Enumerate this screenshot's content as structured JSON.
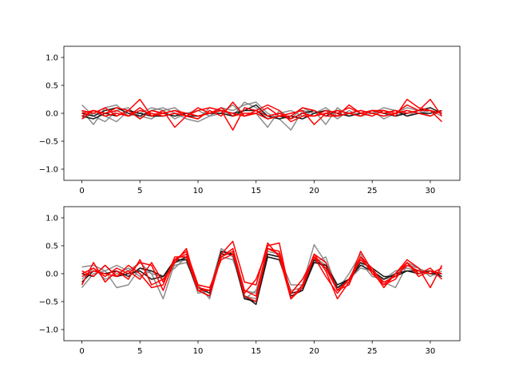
{
  "colors": {
    "gray": "#7f7f7f",
    "black": "#1a1a1a",
    "red": "#ff0000"
  },
  "chart_data": [
    {
      "type": "line",
      "title": "",
      "xlabel": "",
      "ylabel": "",
      "xlim": [
        -1.55,
        32.55
      ],
      "ylim": [
        -1.2,
        1.2
      ],
      "grid": false,
      "legend": "none",
      "xticks": [
        0,
        5,
        10,
        15,
        20,
        25,
        30
      ],
      "yticks": [
        -1.0,
        -0.5,
        0.0,
        0.5,
        1.0
      ],
      "xtick_labels": [
        "0",
        "5",
        "10",
        "15",
        "20",
        "25",
        "30"
      ],
      "ytick_labels": [
        "−1.0",
        "−0.5",
        "0.0",
        "0.5",
        "1.0"
      ],
      "x": [
        0,
        1,
        2,
        3,
        4,
        5,
        6,
        7,
        8,
        9,
        10,
        11,
        12,
        13,
        14,
        15,
        16,
        17,
        18,
        19,
        20,
        21,
        22,
        23,
        24,
        25,
        26,
        27,
        28,
        29,
        30,
        31
      ],
      "series": [
        {
          "color": "gray",
          "values": [
            0.15,
            -0.05,
            -0.15,
            0.05,
            0.1,
            -0.1,
            0.05,
            0.1,
            0.0,
            -0.1,
            -0.15,
            -0.05,
            0.1,
            0.05,
            0.15,
            0.2,
            0.0,
            -0.1,
            -0.3,
            0.05,
            0.0,
            0.1,
            -0.05,
            0.0,
            0.05,
            0.0,
            0.05,
            -0.05,
            0.05,
            0.0,
            0.05,
            -0.05
          ]
        },
        {
          "color": "gray",
          "values": [
            0.05,
            -0.2,
            0.1,
            0.15,
            -0.05,
            0.0,
            0.1,
            0.05,
            -0.1,
            0.0,
            0.05,
            -0.05,
            0.0,
            0.15,
            -0.05,
            0.0,
            -0.25,
            0.05,
            -0.1,
            0.1,
            0.0,
            0.05,
            -0.1,
            0.05,
            -0.05,
            0.0,
            0.1,
            0.05,
            -0.05,
            0.05,
            0.1,
            0.0
          ]
        },
        {
          "color": "gray",
          "values": [
            -0.1,
            0.0,
            -0.05,
            -0.15,
            0.05,
            -0.05,
            -0.1,
            0.05,
            0.1,
            -0.05,
            -0.1,
            0.1,
            0.05,
            -0.05,
            0.2,
            0.1,
            -0.05,
            0.0,
            0.05,
            -0.05,
            0.05,
            -0.2,
            0.1,
            -0.05,
            0.0,
            0.05,
            -0.1,
            0.0,
            0.1,
            0.05,
            -0.05,
            0.05
          ]
        },
        {
          "color": "black",
          "values": [
            0.0,
            -0.05,
            0.05,
            0.1,
            0.0,
            -0.05,
            0.05,
            0.0,
            -0.05,
            0.0,
            -0.05,
            0.0,
            0.05,
            0.0,
            0.05,
            0.15,
            -0.05,
            -0.1,
            -0.05,
            -0.1,
            0.0,
            0.05,
            0.0,
            -0.05,
            0.0,
            0.05,
            0.0,
            -0.05,
            0.0,
            0.05,
            0.1,
            0.0
          ]
        },
        {
          "color": "black",
          "values": [
            -0.05,
            -0.1,
            0.0,
            -0.05,
            0.05,
            0.0,
            -0.05,
            -0.05,
            0.0,
            -0.05,
            -0.05,
            0.0,
            0.0,
            -0.05,
            0.05,
            0.05,
            -0.1,
            -0.05,
            -0.1,
            0.0,
            0.05,
            -0.05,
            0.05,
            0.0,
            -0.05,
            0.05,
            0.0,
            0.05,
            -0.05,
            0.0,
            0.0,
            0.05
          ]
        },
        {
          "color": "red",
          "values": [
            -0.05,
            0.05,
            0.0,
            0.1,
            0.05,
            0.25,
            -0.05,
            0.05,
            -0.25,
            -0.05,
            0.1,
            0.0,
            0.05,
            -0.3,
            0.1,
            0.05,
            0.15,
            0.05,
            -0.15,
            -0.05,
            -0.05,
            0.05,
            0.0,
            0.1,
            0.0,
            0.05,
            0.05,
            -0.05,
            0.25,
            0.1,
            0.05,
            0.0
          ]
        },
        {
          "color": "red",
          "values": [
            0.05,
            0.0,
            0.1,
            -0.05,
            0.05,
            -0.1,
            0.05,
            0.0,
            0.05,
            -0.05,
            -0.1,
            0.05,
            -0.05,
            0.2,
            -0.05,
            0.0,
            0.1,
            -0.05,
            -0.05,
            0.1,
            0.05,
            -0.05,
            -0.05,
            0.15,
            0.0,
            -0.05,
            0.05,
            0.0,
            0.15,
            0.05,
            0.25,
            -0.05
          ]
        },
        {
          "color": "red",
          "values": [
            0.0,
            0.05,
            -0.05,
            0.0,
            -0.05,
            0.05,
            0.0,
            -0.05,
            0.0,
            -0.05,
            0.05,
            0.1,
            0.05,
            0.0,
            -0.05,
            0.05,
            -0.05,
            0.0,
            -0.1,
            0.0,
            -0.05,
            0.0,
            0.05,
            0.0,
            -0.05,
            0.05,
            0.0,
            0.05,
            0.0,
            0.05,
            0.05,
            -0.15
          ]
        },
        {
          "color": "red",
          "values": [
            -0.1,
            0.05,
            0.0,
            0.05,
            -0.05,
            0.1,
            -0.05,
            0.0,
            0.05,
            0.0,
            -0.05,
            0.0,
            0.1,
            -0.05,
            0.0,
            0.0,
            -0.1,
            -0.05,
            0.0,
            0.05,
            -0.2,
            0.0,
            -0.05,
            0.0,
            0.05,
            0.0,
            -0.05,
            0.0,
            0.05,
            0.0,
            -0.05,
            0.05
          ]
        }
      ]
    },
    {
      "type": "line",
      "title": "",
      "xlabel": "",
      "ylabel": "",
      "xlim": [
        -1.55,
        32.55
      ],
      "ylim": [
        -1.2,
        1.2
      ],
      "grid": false,
      "legend": "none",
      "xticks": [
        0,
        5,
        10,
        15,
        20,
        25,
        30
      ],
      "yticks": [
        -1.0,
        -0.5,
        0.0,
        0.5,
        1.0
      ],
      "xtick_labels": [
        "0",
        "5",
        "10",
        "15",
        "20",
        "25",
        "30"
      ],
      "ytick_labels": [
        "−1.0",
        "−0.5",
        "0.0",
        "0.5",
        "1.0"
      ],
      "x": [
        0,
        1,
        2,
        3,
        4,
        5,
        6,
        7,
        8,
        9,
        10,
        11,
        12,
        13,
        14,
        15,
        16,
        17,
        18,
        19,
        20,
        21,
        22,
        23,
        24,
        25,
        26,
        27,
        28,
        29,
        30,
        31
      ],
      "series": [
        {
          "color": "gray",
          "values": [
            0.12,
            0.15,
            0.05,
            0.15,
            0.05,
            0.2,
            0.0,
            -0.05,
            0.1,
            0.3,
            -0.2,
            -0.45,
            0.4,
            0.35,
            -0.4,
            -0.45,
            0.35,
            0.3,
            -0.2,
            -0.2,
            0.52,
            0.2,
            -0.2,
            -0.1,
            0.1,
            0.05,
            -0.1,
            -0.05,
            0.2,
            0.1,
            0.0,
            -0.05
          ]
        },
        {
          "color": "gray",
          "values": [
            -0.25,
            0.0,
            0.05,
            -0.25,
            -0.2,
            0.1,
            0.0,
            -0.45,
            0.2,
            0.25,
            -0.35,
            -0.3,
            0.45,
            0.3,
            -0.45,
            -0.3,
            0.4,
            0.35,
            -0.45,
            -0.25,
            0.2,
            0.3,
            -0.3,
            0.0,
            0.35,
            0.0,
            -0.15,
            -0.25,
            0.15,
            0.1,
            -0.05,
            0.05
          ]
        },
        {
          "color": "gray",
          "values": [
            -0.1,
            0.1,
            -0.1,
            0.0,
            0.1,
            -0.05,
            0.05,
            -0.1,
            0.15,
            0.2,
            -0.25,
            -0.3,
            0.3,
            0.25,
            -0.3,
            -0.35,
            0.3,
            0.25,
            -0.3,
            -0.25,
            0.3,
            0.15,
            -0.25,
            -0.15,
            0.2,
            -0.05,
            -0.1,
            0.05,
            0.1,
            0.05,
            0.05,
            0.0
          ]
        },
        {
          "color": "black",
          "values": [
            0.0,
            -0.05,
            0.15,
            -0.05,
            0.0,
            0.05,
            -0.1,
            -0.05,
            0.2,
            0.3,
            -0.25,
            -0.35,
            0.4,
            0.35,
            -0.45,
            -0.5,
            0.35,
            0.3,
            -0.4,
            -0.3,
            0.25,
            0.1,
            -0.25,
            -0.1,
            0.2,
            0.1,
            -0.05,
            -0.05,
            0.05,
            0.0,
            0.05,
            -0.05
          ]
        },
        {
          "color": "black",
          "values": [
            -0.15,
            0.05,
            0.0,
            0.05,
            -0.05,
            0.1,
            0.05,
            -0.05,
            0.25,
            0.25,
            -0.3,
            -0.4,
            0.35,
            0.35,
            -0.4,
            -0.55,
            0.3,
            0.25,
            -0.35,
            -0.3,
            0.2,
            0.15,
            -0.2,
            -0.1,
            0.15,
            0.05,
            -0.1,
            0.0,
            0.05,
            0.05,
            0.0,
            0.0
          ]
        },
        {
          "color": "red",
          "values": [
            -0.2,
            0.2,
            -0.15,
            0.05,
            -0.1,
            0.25,
            -0.2,
            -0.1,
            0.2,
            0.45,
            -0.3,
            -0.3,
            0.35,
            0.58,
            -0.15,
            -0.2,
            0.55,
            0.3,
            -0.45,
            -0.2,
            0.35,
            0.05,
            -0.45,
            -0.15,
            0.4,
            0.05,
            -0.25,
            0.0,
            0.25,
            0.1,
            -0.25,
            0.15
          ]
        },
        {
          "color": "red",
          "values": [
            0.05,
            -0.05,
            0.15,
            -0.05,
            0.05,
            -0.1,
            0.2,
            -0.15,
            0.25,
            0.35,
            -0.25,
            -0.3,
            0.3,
            0.45,
            -0.3,
            -0.4,
            0.5,
            0.55,
            -0.45,
            -0.25,
            0.3,
            -0.05,
            -0.35,
            -0.1,
            0.3,
            0.1,
            -0.2,
            -0.1,
            0.2,
            0.0,
            0.1,
            -0.1
          ]
        },
        {
          "color": "red",
          "values": [
            0.0,
            0.1,
            -0.05,
            0.1,
            0.0,
            0.2,
            0.15,
            -0.3,
            0.25,
            0.4,
            -0.2,
            -0.25,
            0.25,
            0.35,
            -0.35,
            -0.1,
            0.45,
            0.4,
            -0.35,
            -0.1,
            0.3,
            0.1,
            -0.3,
            -0.1,
            0.25,
            0.05,
            -0.15,
            -0.05,
            0.15,
            0.05,
            0.0,
            0.1
          ]
        },
        {
          "color": "red",
          "values": [
            -0.05,
            0.05,
            0.0,
            -0.05,
            0.15,
            0.0,
            -0.25,
            -0.2,
            0.3,
            0.3,
            -0.3,
            -0.4,
            0.3,
            0.4,
            -0.4,
            -0.5,
            0.45,
            0.35,
            -0.45,
            -0.2,
            0.35,
            0.2,
            -0.3,
            -0.2,
            0.3,
            0.0,
            -0.2,
            0.0,
            0.2,
            -0.05,
            0.05,
            0.0
          ]
        }
      ]
    }
  ]
}
